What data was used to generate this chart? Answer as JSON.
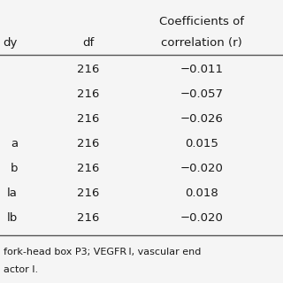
{
  "header_row1": "Coefficients of",
  "header_row2_col0": "dy",
  "header_row2_col1": "df",
  "header_row2_col2": "correlation (r)",
  "rows": [
    [
      "",
      "216",
      "−0.011"
    ],
    [
      "",
      "216",
      "−0.057"
    ],
    [
      "",
      "216",
      "−0.026"
    ],
    [
      "a",
      "216",
      "0.015"
    ],
    [
      "b",
      "216",
      "−0.020"
    ],
    [
      "la",
      "216",
      "0.018"
    ],
    [
      "lb",
      "216",
      "−0.020"
    ]
  ],
  "footnote1": "fork-head box P3; VEGFR I, vascular end",
  "footnote2": "actor I.",
  "bg_color": "#f5f5f5",
  "text_color": "#1a1a1a",
  "font_size": 9.5,
  "footnote_font_size": 8.0
}
